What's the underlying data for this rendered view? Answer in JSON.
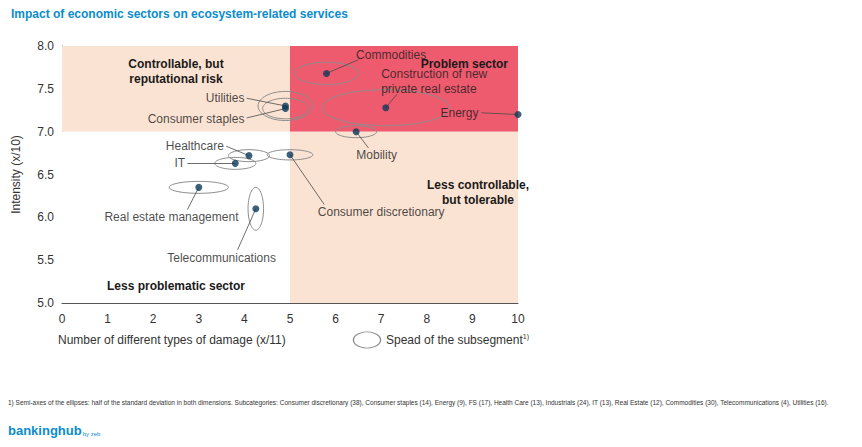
{
  "chart_data": {
    "type": "scatter",
    "title": "Impact of economic sectors on ecosystem-related services",
    "x_label": "Number of different types of damage (x/11)",
    "y_label": "Intensity (x/10)",
    "xlim": [
      0,
      10
    ],
    "xticks": [
      0,
      1,
      2,
      3,
      4,
      5,
      6,
      7,
      8,
      9,
      10
    ],
    "ylim": [
      5,
      8
    ],
    "yticks": [
      {
        "value": 5,
        "label": "5.0"
      },
      5.5,
      {
        "value": 6,
        "label": "6.0"
      },
      6.5,
      {
        "value": 7,
        "label": "7.0"
      },
      7.5,
      {
        "value": 8,
        "label": "8.0"
      }
    ],
    "grid": false,
    "color": "#0e3a5a",
    "x_split": 5,
    "y_split": 7,
    "quadrants": [
      {
        "label": "Controllable, but\nreputational risk",
        "color": "#fbe3d3"
      },
      {
        "label": "Problem sector",
        "color": "#ef5b6e"
      },
      {
        "label": "Less problematic sector",
        "color": "#ffffff"
      },
      {
        "label": "Less controllable,\nbut tolerable",
        "color": "#fbe3d3"
      }
    ],
    "points": {
      "names": [
        "Commodities",
        "Construction of new\nprivate real estate",
        "Energy",
        "Utilities",
        "Consumer staples",
        "Mobility",
        "Healthcare",
        "IT",
        "Consumer discretionary",
        "Real estate management",
        "Telecommunications"
      ],
      "x": [
        5.8,
        7.1,
        10,
        4.9,
        4.9,
        6.45,
        4.1,
        3.8,
        5.0,
        3.0,
        4.25
      ],
      "y": [
        7.68,
        7.28,
        7.2,
        7.3,
        7.27,
        7.0,
        6.72,
        6.63,
        6.73,
        6.35,
        6.1
      ],
      "spread_x": [
        0.7,
        1.4,
        0,
        0.6,
        0.5,
        0.45,
        0.45,
        0.45,
        0.5,
        0.65,
        0.17
      ],
      "spread_y": [
        0.13,
        0.21,
        0,
        0.17,
        0.12,
        0.07,
        0.07,
        0.07,
        0.06,
        0.07,
        0.25
      ]
    },
    "spread_label": "Spead of the subsegment",
    "spread_note": "1)",
    "footnote": "1) Semi-axes of the ellipses: half of the standard deviation in both dimensions. Subcategories: Consumer discretionary (38), Consumer staples (14), Energy (9), FS (17), Health Care (13), Industrials (24), IT (13), Real Estate (12), Commodities (30), Telecommunications (4), Utilities (16).",
    "source": "bankinghub",
    "source_suffix": "by zeb"
  }
}
